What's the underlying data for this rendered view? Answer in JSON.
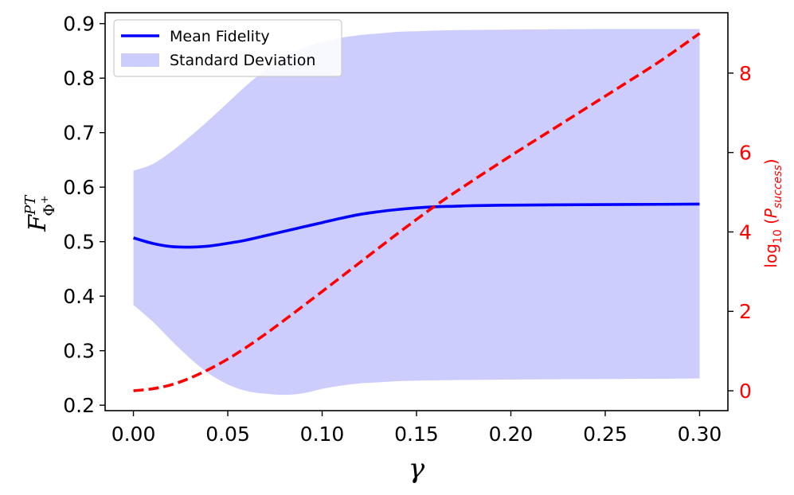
{
  "chart_data": {
    "type": "line",
    "xlabel": "γ",
    "ylabel": {
      "script": "F",
      "superscript": "PT",
      "subscript": "Φ",
      "subsub": "+"
    },
    "y2label": {
      "prefix": "log",
      "sub": "10",
      "open": " (",
      "italic": "P",
      "italic_sub": "success",
      "close": ")"
    },
    "xlim": [
      -0.015,
      0.315
    ],
    "ylim": [
      0.19,
      0.92
    ],
    "y2lim": [
      -0.5,
      9.52
    ],
    "x_ticks": [
      0.0,
      0.05,
      0.1,
      0.15,
      0.2,
      0.25,
      0.3
    ],
    "x_tick_labels": [
      "0.00",
      "0.05",
      "0.10",
      "0.15",
      "0.20",
      "0.25",
      "0.30"
    ],
    "y_ticks": [
      0.2,
      0.3,
      0.4,
      0.5,
      0.6,
      0.7,
      0.8,
      0.9
    ],
    "y_tick_labels": [
      "0.2",
      "0.3",
      "0.4",
      "0.5",
      "0.6",
      "0.7",
      "0.8",
      "0.9"
    ],
    "y2_ticks": [
      0,
      2,
      4,
      6,
      8
    ],
    "y2_tick_labels": [
      "0",
      "2",
      "4",
      "6",
      "8"
    ],
    "legend": {
      "position": "upper-left",
      "entries": [
        "Mean Fidelity",
        "Standard Deviation"
      ]
    },
    "colors": {
      "mean": "#0000ff",
      "band": "#cdcdfd",
      "psuccess": "#ff0000",
      "axis2": "#ff0000"
    },
    "series": [
      {
        "name": "Mean Fidelity",
        "axis": "left",
        "style": "solid",
        "x": [
          0.0,
          0.01,
          0.02,
          0.03,
          0.04,
          0.05,
          0.06,
          0.07,
          0.08,
          0.09,
          0.1,
          0.11,
          0.12,
          0.13,
          0.14,
          0.15,
          0.16,
          0.17,
          0.18,
          0.2,
          0.22,
          0.25,
          0.28,
          0.3
        ],
        "values": [
          0.507,
          0.497,
          0.491,
          0.49,
          0.492,
          0.497,
          0.503,
          0.511,
          0.519,
          0.527,
          0.535,
          0.543,
          0.55,
          0.555,
          0.559,
          0.562,
          0.564,
          0.565,
          0.566,
          0.567,
          0.5675,
          0.568,
          0.5685,
          0.569
        ]
      },
      {
        "name": "Standard Deviation",
        "axis": "left",
        "style": "band",
        "x": [
          0.0,
          0.01,
          0.02,
          0.03,
          0.04,
          0.05,
          0.06,
          0.07,
          0.08,
          0.09,
          0.1,
          0.11,
          0.12,
          0.13,
          0.14,
          0.15,
          0.17,
          0.2,
          0.25,
          0.3
        ],
        "upper": [
          0.63,
          0.642,
          0.665,
          0.693,
          0.723,
          0.755,
          0.787,
          0.815,
          0.838,
          0.855,
          0.866,
          0.874,
          0.879,
          0.882,
          0.885,
          0.886,
          0.888,
          0.889,
          0.89,
          0.89
        ],
        "lower": [
          0.384,
          0.354,
          0.319,
          0.286,
          0.258,
          0.238,
          0.226,
          0.221,
          0.219,
          0.222,
          0.23,
          0.236,
          0.24,
          0.242,
          0.244,
          0.245,
          0.246,
          0.247,
          0.248,
          0.249
        ]
      },
      {
        "name": "log10 P_success",
        "axis": "right",
        "style": "dashed",
        "x": [
          0.0,
          0.01,
          0.02,
          0.03,
          0.04,
          0.05,
          0.06,
          0.07,
          0.08,
          0.09,
          0.1,
          0.12,
          0.14,
          0.16,
          0.18,
          0.2,
          0.22,
          0.24,
          0.26,
          0.28,
          0.3
        ],
        "values": [
          0.0,
          0.05,
          0.15,
          0.32,
          0.54,
          0.8,
          1.1,
          1.43,
          1.78,
          2.14,
          2.5,
          3.23,
          3.96,
          4.66,
          5.3,
          5.92,
          6.52,
          7.12,
          7.72,
          8.33,
          9.0
        ]
      }
    ]
  }
}
